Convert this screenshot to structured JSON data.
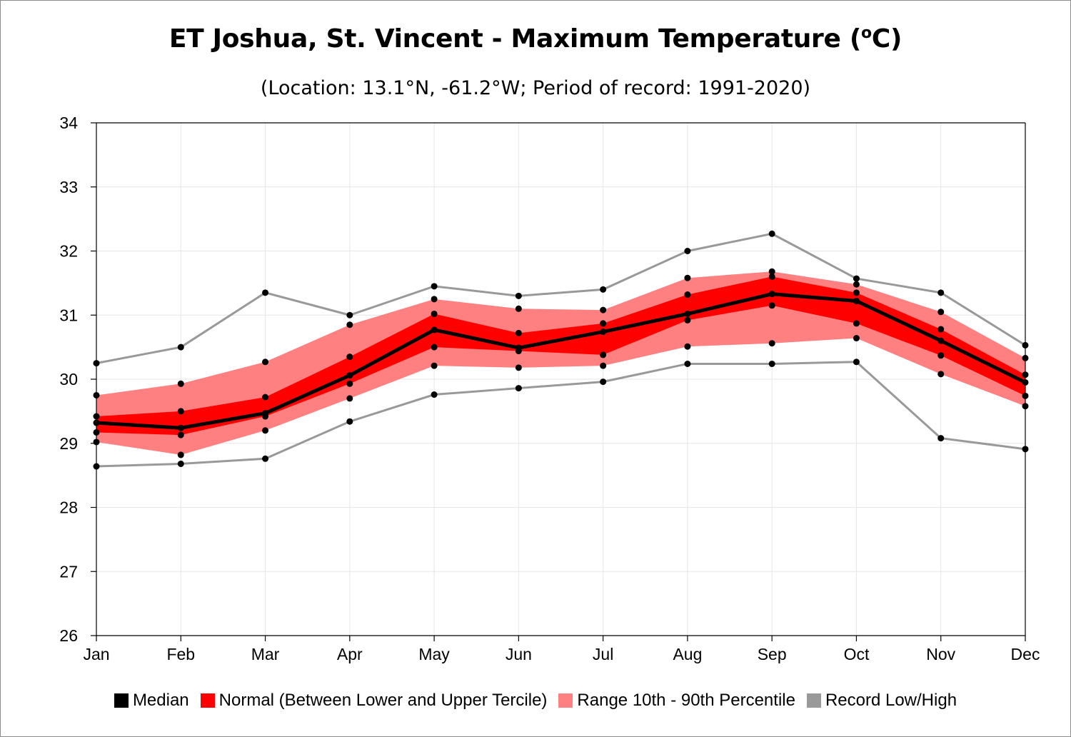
{
  "title_main": "ET Joshua, St. Vincent - Maximum Temperature (",
  "title_sup": "o",
  "title_end": "C)",
  "subtitle": "(Location: 13.1°N, -61.2°W; Period of record: 1991-2020)",
  "chart_data": {
    "type": "line",
    "categories": [
      "Jan",
      "Feb",
      "Mar",
      "Apr",
      "May",
      "Jun",
      "Jul",
      "Aug",
      "Sep",
      "Oct",
      "Nov",
      "Dec"
    ],
    "ylim": [
      26,
      34
    ],
    "yticks": [
      26,
      27,
      28,
      29,
      30,
      31,
      32,
      33,
      34
    ],
    "grid": true,
    "legend_position": "bottom",
    "series": [
      {
        "name": "Record Low/High",
        "key": "record_high",
        "color": "#999999",
        "values": [
          30.25,
          30.5,
          31.35,
          31.0,
          31.45,
          31.3,
          31.4,
          32.0,
          32.27,
          31.57,
          31.35,
          30.53
        ]
      },
      {
        "key": "p90",
        "color": "#ff8080",
        "values": [
          29.75,
          29.93,
          30.27,
          30.85,
          31.25,
          31.1,
          31.08,
          31.58,
          31.68,
          31.48,
          31.05,
          30.33
        ]
      },
      {
        "key": "upper_tercile",
        "color": "#ff0000",
        "values": [
          29.42,
          29.5,
          29.72,
          30.35,
          31.02,
          30.72,
          30.87,
          31.32,
          31.6,
          31.35,
          30.78,
          30.07
        ]
      },
      {
        "name": "Median",
        "key": "median",
        "color": "#000000",
        "values": [
          29.32,
          29.24,
          29.47,
          30.06,
          30.77,
          30.49,
          30.74,
          31.02,
          31.33,
          31.22,
          30.6,
          29.95
        ]
      },
      {
        "key": "lower_tercile",
        "color": "#ff0000",
        "values": [
          29.17,
          29.13,
          29.42,
          29.93,
          30.5,
          30.44,
          30.38,
          30.92,
          31.15,
          30.87,
          30.37,
          29.74
        ]
      },
      {
        "key": "p10",
        "color": "#ff8080",
        "values": [
          29.02,
          28.82,
          29.2,
          29.7,
          30.21,
          30.18,
          30.21,
          30.51,
          30.56,
          30.64,
          30.08,
          29.58
        ]
      },
      {
        "key": "record_low",
        "color": "#999999",
        "values": [
          28.64,
          28.68,
          28.76,
          29.34,
          29.76,
          29.86,
          29.96,
          30.24,
          30.24,
          30.27,
          29.08,
          28.91
        ]
      }
    ],
    "bands": [
      {
        "name": "Range 10th - 90th Percentile",
        "lower": "p10",
        "upper": "p90",
        "color": "#ff8080"
      },
      {
        "name": "Normal (Between Lower and Upper Tercile)",
        "lower": "lower_tercile",
        "upper": "upper_tercile",
        "color": "#ff0000"
      }
    ]
  },
  "legend": [
    {
      "label": "Median",
      "color": "#000000"
    },
    {
      "label": "Normal (Between Lower and Upper Tercile)",
      "color": "#ff0000"
    },
    {
      "label": "Range 10th - 90th Percentile",
      "color": "#ff8080"
    },
    {
      "label": "Record Low/High",
      "color": "#999999"
    }
  ]
}
